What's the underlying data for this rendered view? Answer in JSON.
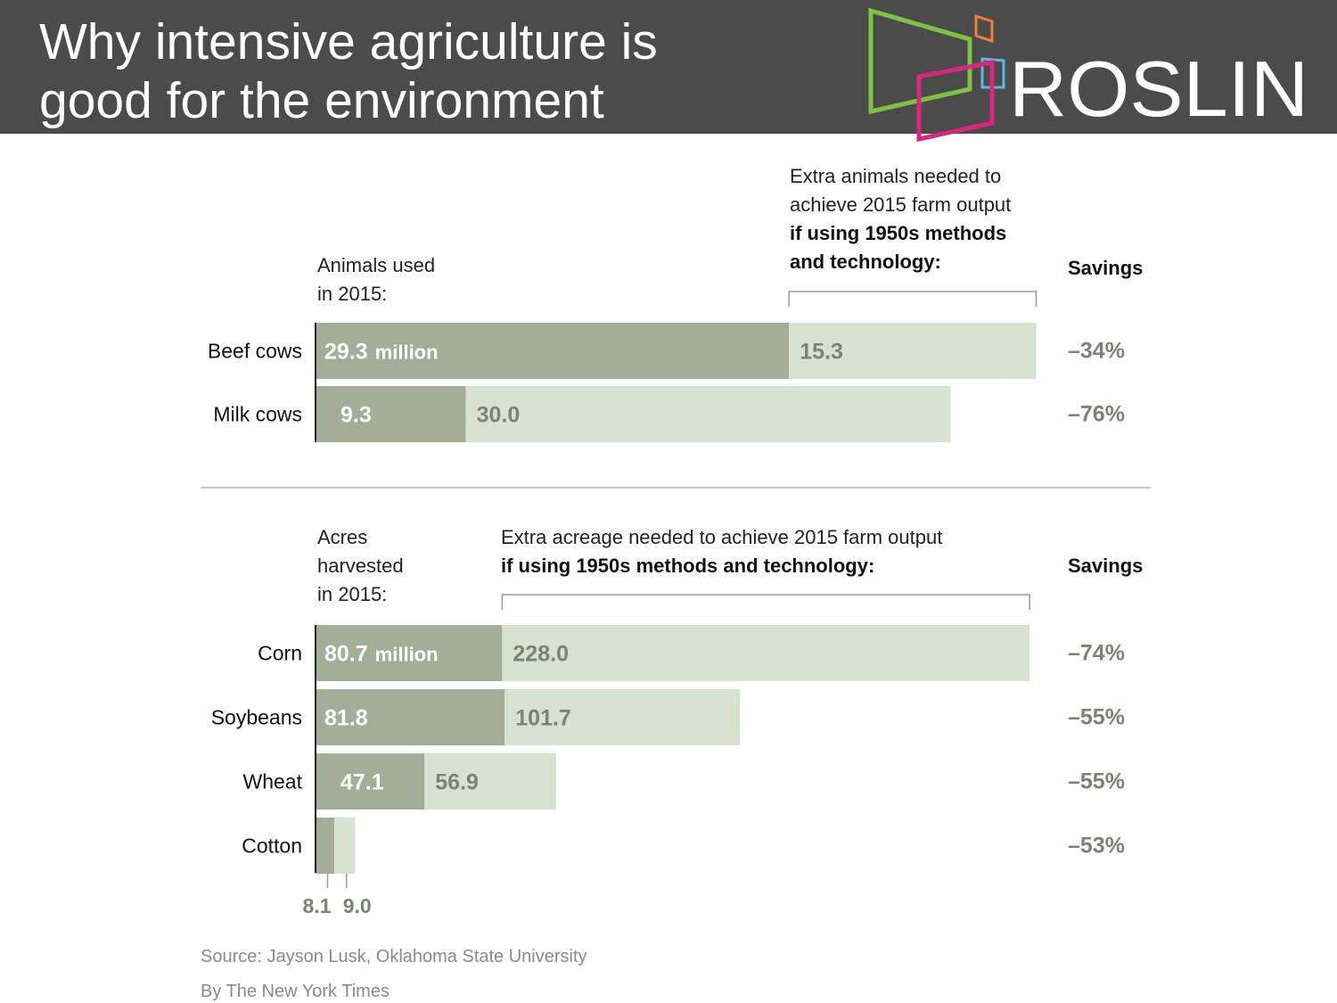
{
  "header": {
    "title": "Why intensive agriculture is\ngood for the environment",
    "logo_text": "ROSLIN",
    "background": "#4b4b4b"
  },
  "colors": {
    "used": "#a3ad97",
    "extra": "#d7e2d0",
    "value_on_used": "#ffffff",
    "value_on_extra": "#7b8471",
    "savings": "#7b8471",
    "logo_green": "#7fc241",
    "logo_orange": "#f07f3c",
    "logo_blue": "#5fb7e5",
    "logo_magenta": "#d6287d"
  },
  "chart_data": [
    {
      "type": "bar",
      "orientation": "horizontal",
      "stacked": true,
      "used_label": "Animals used\nin 2015:",
      "extra_label_plain": "Extra animals needed to\nachieve 2015 farm output",
      "extra_label_bold": "if using 1950s methods\nand technology:",
      "savings_header": "Savings",
      "categories": [
        "Beef cows",
        "Milk cows"
      ],
      "series": [
        {
          "name": "Animals used in 2015",
          "values": [
            29.3,
            9.3
          ],
          "display": [
            "29.3",
            "9.3"
          ]
        },
        {
          "name": "Extra animals needed",
          "values": [
            15.3,
            30.0
          ],
          "display": [
            "15.3",
            "30.0"
          ]
        }
      ],
      "unit_suffix": "million",
      "savings": [
        "–34%",
        "–76%"
      ],
      "xlim": [
        0,
        44.6
      ]
    },
    {
      "type": "bar",
      "orientation": "horizontal",
      "stacked": true,
      "used_label": "Acres\nharvested\nin 2015:",
      "extra_label_plain": "Extra acreage needed to achieve 2015 farm output",
      "extra_label_bold": "if using 1950s methods and technology:",
      "savings_header": "Savings",
      "categories": [
        "Corn",
        "Soybeans",
        "Wheat",
        "Cotton"
      ],
      "series": [
        {
          "name": "Acres harvested in 2015",
          "values": [
            80.7,
            81.8,
            47.1,
            8.1
          ],
          "display": [
            "80.7",
            "81.8",
            "47.1",
            "8.1"
          ]
        },
        {
          "name": "Extra acreage needed",
          "values": [
            228.0,
            101.7,
            56.9,
            9.0
          ],
          "display": [
            "228.0",
            "101.7",
            "56.9",
            "9.0"
          ]
        }
      ],
      "unit_suffix": "million",
      "savings": [
        "–74%",
        "–55%",
        "–55%",
        "–53%"
      ],
      "xlim": [
        0,
        308.7
      ]
    }
  ],
  "footer": {
    "source": "Source: Jayson Lusk, Oklahoma State University",
    "credit": "By The New York Times"
  }
}
